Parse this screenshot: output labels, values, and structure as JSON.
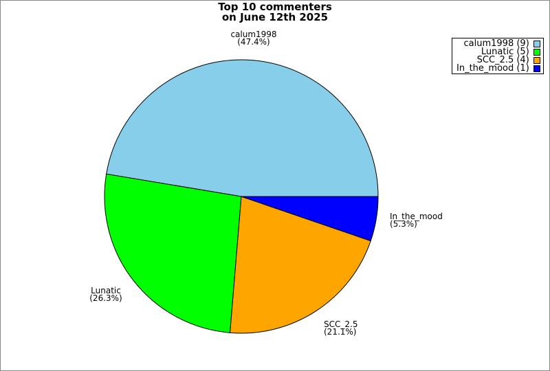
{
  "chart_data": {
    "type": "pie",
    "title_line1": "Top 10 commenters",
    "title_line2": "on June 12th 2025",
    "start_angle_deg": 0,
    "direction": "counterclockwise",
    "legend_position": "top-right",
    "slices": [
      {
        "label": "calum1998",
        "value": 9,
        "percent": "(47.4%)",
        "legend": "calum1998 (9)",
        "color": "#87CEEB"
      },
      {
        "label": "Lunatic",
        "value": 5,
        "percent": "(26.3%)",
        "legend": "Lunatic (5)",
        "color": "#00FF00"
      },
      {
        "label": "SCC_2.5",
        "value": 4,
        "percent": "(21.1%)",
        "legend": "SCC_2.5 (4)",
        "color": "#FFA500"
      },
      {
        "label": "In_the_mood",
        "value": 1,
        "percent": "(5.3%)",
        "legend": "In_the_mood (1)",
        "color": "#0000FF"
      }
    ]
  }
}
